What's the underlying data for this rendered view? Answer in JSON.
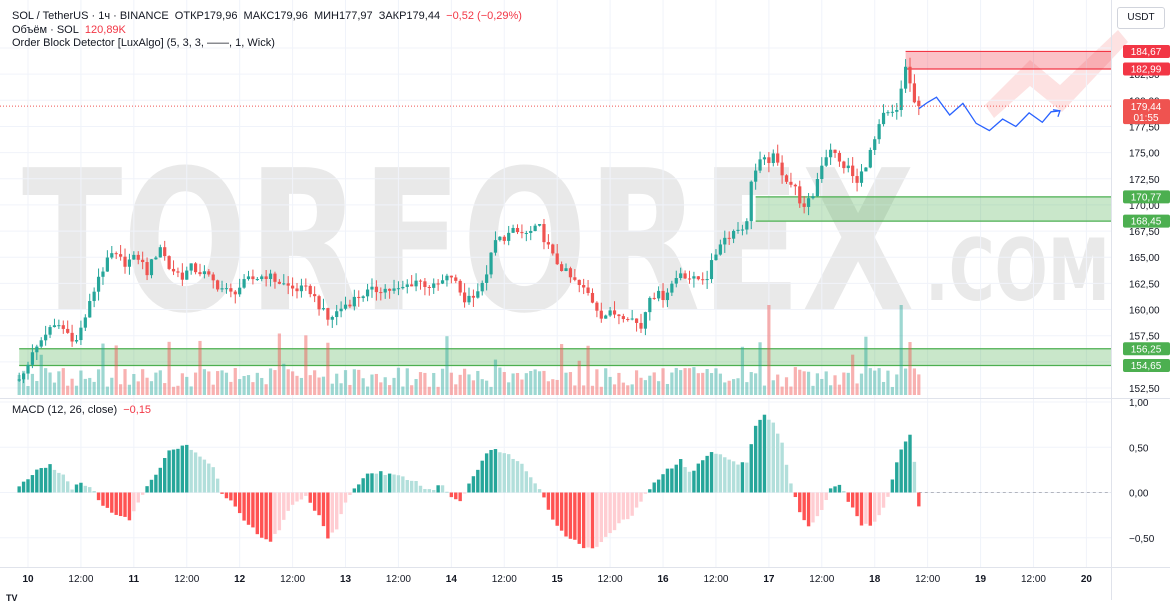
{
  "legend": {
    "symbol": "SOL / TetherUS · 1ч · BINANCE",
    "open": "ОТКР179,96",
    "high": "МАКС179,96",
    "low": "МИН177,97",
    "close": "ЗАКР179,44",
    "change": "−0,52 (−0,29%)",
    "volume_label": "Объём · SOL",
    "volume_value": "120,89K",
    "indicator": "Order Block Detector [LuxAlgo] (5, 3, 3, ——, 1, Wick)",
    "macd_label": "MACD (12, 26, close)",
    "macd_value": "−0,15"
  },
  "currency_button": "USDT",
  "watermark": {
    "main": "TORFOREX",
    "suffix": ".COM"
  },
  "colors": {
    "up": "#26a69a",
    "down": "#ef5350",
    "hist_up_strong": "#26a69a",
    "hist_up_weak": "#b2dfdb",
    "hist_down_strong": "#ff5252",
    "hist_down_weak": "#ffcdd2",
    "bull_zone": "#4caf50",
    "bear_zone": "#f23645",
    "forecast": "#2962ff"
  },
  "chart_data": [
    {
      "type": "candlestick",
      "title": "SOL / TetherUS · 1ч · BINANCE",
      "ylim": [
        151.5,
        186.5
      ],
      "y_ticks": [
        "185,00",
        "182,50",
        "180,00",
        "177,50",
        "175,00",
        "172,50",
        "170,00",
        "167,50",
        "165,00",
        "162,50",
        "160,00",
        "157,50",
        "155,00",
        "152,50"
      ],
      "y_tick_values": [
        185,
        182.5,
        180,
        177.5,
        175,
        172.5,
        170,
        167.5,
        165,
        162.5,
        160,
        157.5,
        155,
        152.5
      ],
      "x_ticks": [
        "10",
        "12:00",
        "11",
        "12:00",
        "12",
        "12:00",
        "13",
        "12:00",
        "14",
        "12:00",
        "15",
        "12:00",
        "16",
        "12:00",
        "17",
        "12:00",
        "18",
        "12:00",
        "19",
        "12:00",
        "20"
      ],
      "x_tick_hours": [
        0,
        12,
        24,
        36,
        48,
        60,
        72,
        84,
        96,
        108,
        120,
        132,
        144,
        156,
        168,
        180,
        192,
        204,
        216,
        228,
        240
      ],
      "x_start_hour": -2,
      "last_candle_hour": 202,
      "close_anchors": [
        [
          -2,
          153.2
        ],
        [
          0,
          155.0
        ],
        [
          4,
          157.8
        ],
        [
          7,
          158.5
        ],
        [
          11,
          157.0
        ],
        [
          14,
          160.5
        ],
        [
          16,
          163.2
        ],
        [
          19,
          165.2
        ],
        [
          22,
          164.5
        ],
        [
          25,
          165.0
        ],
        [
          27,
          163.6
        ],
        [
          30,
          166.1
        ],
        [
          32,
          164.0
        ],
        [
          35,
          163.2
        ],
        [
          37,
          164.0
        ],
        [
          40,
          163.4
        ],
        [
          43,
          162.3
        ],
        [
          46,
          161.5
        ],
        [
          50,
          162.8
        ],
        [
          54,
          163.3
        ],
        [
          57,
          162.6
        ],
        [
          60,
          162.0
        ],
        [
          64,
          161.8
        ],
        [
          68,
          159.0
        ],
        [
          72,
          160.5
        ],
        [
          76,
          161.5
        ],
        [
          80,
          162.0
        ],
        [
          84,
          161.8
        ],
        [
          88,
          162.8
        ],
        [
          92,
          162.1
        ],
        [
          96,
          163.2
        ],
        [
          99,
          160.9
        ],
        [
          103,
          162.2
        ],
        [
          106,
          166.5
        ],
        [
          110,
          167.4
        ],
        [
          113,
          167.2
        ],
        [
          116,
          167.8
        ],
        [
          119,
          165.0
        ],
        [
          123,
          163.0
        ],
        [
          127,
          161.5
        ],
        [
          130,
          159.5
        ],
        [
          133,
          159.6
        ],
        [
          136,
          159.5
        ],
        [
          139,
          158.3
        ],
        [
          141,
          161.5
        ],
        [
          144,
          161.3
        ],
        [
          148,
          163.6
        ],
        [
          151,
          162.8
        ],
        [
          154,
          163.2
        ],
        [
          157,
          166.5
        ],
        [
          160,
          167.5
        ],
        [
          163,
          168.2
        ],
        [
          164,
          172.5
        ],
        [
          166,
          174.0
        ],
        [
          169,
          174.5
        ],
        [
          172,
          172.5
        ],
        [
          174,
          171.5
        ],
        [
          176,
          169.5
        ],
        [
          178,
          171.0
        ],
        [
          180,
          174.0
        ],
        [
          182,
          175.5
        ],
        [
          184,
          174.0
        ],
        [
          186,
          173.5
        ],
        [
          188,
          172.0
        ],
        [
          191,
          175.0
        ],
        [
          194,
          178.5
        ],
        [
          197,
          178.8
        ],
        [
          199,
          183.3
        ],
        [
          200,
          181.5
        ],
        [
          201,
          179.8
        ],
        [
          202,
          179.44
        ]
      ],
      "forecast_path": [
        [
          202,
          179.2
        ],
        [
          204,
          179.8
        ],
        [
          206,
          180.3
        ],
        [
          209,
          178.6
        ],
        [
          212,
          179.7
        ],
        [
          215,
          177.8
        ],
        [
          218,
          177.1
        ],
        [
          221,
          178.2
        ],
        [
          224,
          177.5
        ],
        [
          227,
          178.8
        ],
        [
          230,
          177.9
        ],
        [
          232,
          178.9
        ],
        [
          234,
          179.0
        ]
      ],
      "last_price": "179,44",
      "countdown": "01:55",
      "order_blocks": [
        {
          "kind": "bearish",
          "top": 184.67,
          "bottom": 182.99,
          "top_label": "184,67",
          "bottom_label": "182,99",
          "start_hour": 199
        },
        {
          "kind": "bullish",
          "top": 170.77,
          "bottom": 168.45,
          "top_label": "170,77",
          "bottom_label": "168,45",
          "start_hour": 165
        },
        {
          "kind": "bullish",
          "top": 156.25,
          "bottom": 154.65,
          "top_label": "156,25",
          "bottom_label": "154,65",
          "start_hour": -2
        }
      ]
    },
    {
      "type": "bar",
      "title": "MACD (12, 26, close)",
      "last_value": "−0,15",
      "ylim": [
        -0.8,
        1.0
      ],
      "y_ticks": [
        "1,00",
        "0,50",
        "0,00",
        "−0,50"
      ],
      "y_tick_values": [
        1.0,
        0.5,
        0.0,
        -0.5
      ],
      "hist_anchors": [
        [
          -2,
          0.05
        ],
        [
          2,
          0.25
        ],
        [
          5,
          0.3
        ],
        [
          8,
          0.2
        ],
        [
          10,
          0.05
        ],
        [
          12,
          0.12
        ],
        [
          15,
          0.02
        ],
        [
          17,
          -0.15
        ],
        [
          20,
          -0.25
        ],
        [
          23,
          -0.3
        ],
        [
          25,
          -0.1
        ],
        [
          27,
          0.08
        ],
        [
          30,
          0.28
        ],
        [
          32,
          0.45
        ],
        [
          36,
          0.52
        ],
        [
          40,
          0.38
        ],
        [
          42,
          0.28
        ],
        [
          44,
          0.0
        ],
        [
          46,
          -0.1
        ],
        [
          49,
          -0.3
        ],
        [
          52,
          -0.45
        ],
        [
          55,
          -0.55
        ],
        [
          57,
          -0.4
        ],
        [
          59,
          -0.2
        ],
        [
          61,
          -0.1
        ],
        [
          63,
          -0.05
        ],
        [
          66,
          -0.25
        ],
        [
          68,
          -0.5
        ],
        [
          70,
          -0.4
        ],
        [
          72,
          -0.1
        ],
        [
          74,
          0.05
        ],
        [
          77,
          0.2
        ],
        [
          80,
          0.22
        ],
        [
          84,
          0.18
        ],
        [
          88,
          0.12
        ],
        [
          91,
          0.02
        ],
        [
          94,
          0.08
        ],
        [
          96,
          -0.05
        ],
        [
          98,
          -0.08
        ],
        [
          100,
          0.1
        ],
        [
          103,
          0.35
        ],
        [
          105,
          0.48
        ],
        [
          108,
          0.45
        ],
        [
          112,
          0.3
        ],
        [
          115,
          0.12
        ],
        [
          117,
          -0.05
        ],
        [
          119,
          -0.3
        ],
        [
          122,
          -0.48
        ],
        [
          126,
          -0.6
        ],
        [
          129,
          -0.62
        ],
        [
          131,
          -0.5
        ],
        [
          134,
          -0.35
        ],
        [
          137,
          -0.25
        ],
        [
          139,
          -0.1
        ],
        [
          141,
          0.05
        ],
        [
          145,
          0.25
        ],
        [
          148,
          0.35
        ],
        [
          150,
          0.22
        ],
        [
          152,
          0.3
        ],
        [
          155,
          0.45
        ],
        [
          158,
          0.4
        ],
        [
          161,
          0.3
        ],
        [
          163,
          0.35
        ],
        [
          165,
          0.75
        ],
        [
          167,
          0.85
        ],
        [
          169,
          0.78
        ],
        [
          171,
          0.55
        ],
        [
          173,
          0.1
        ],
        [
          175,
          -0.2
        ],
        [
          177,
          -0.38
        ],
        [
          180,
          -0.2
        ],
        [
          182,
          0.05
        ],
        [
          184,
          0.1
        ],
        [
          186,
          -0.1
        ],
        [
          189,
          -0.35
        ],
        [
          191,
          -0.38
        ],
        [
          193,
          -0.25
        ],
        [
          195,
          -0.05
        ],
        [
          197,
          0.35
        ],
        [
          199,
          0.58
        ],
        [
          200,
          0.62
        ],
        [
          201,
          0.32
        ],
        [
          202,
          -0.15
        ]
      ]
    }
  ]
}
